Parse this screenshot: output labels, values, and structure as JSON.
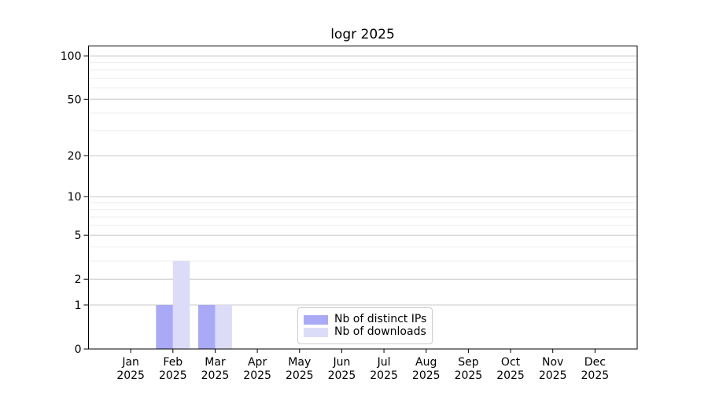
{
  "chart_data": {
    "type": "bar",
    "title": "logr 2025",
    "categories": [
      "Jan",
      "Feb",
      "Mar",
      "Apr",
      "May",
      "Jun",
      "Jul",
      "Aug",
      "Sep",
      "Oct",
      "Nov",
      "Dec"
    ],
    "category_year": "2025",
    "series": [
      {
        "name": "Nb of distinct IPs",
        "color": "#a9a9f6",
        "values": [
          0,
          1,
          1,
          0,
          0,
          0,
          0,
          0,
          0,
          0,
          0,
          0
        ]
      },
      {
        "name": "Nb of downloads",
        "color": "#dcdcf9",
        "values": [
          0,
          3,
          1,
          0,
          0,
          0,
          0,
          0,
          0,
          0,
          0,
          0
        ]
      }
    ],
    "y_scale": "log1p",
    "y_major_ticks": [
      0,
      1,
      2,
      5,
      10,
      20,
      50,
      100
    ],
    "y_minor_ticks": [
      3,
      4,
      6,
      7,
      8,
      9,
      30,
      40,
      60,
      70,
      80,
      90
    ],
    "ylim": [
      0,
      117
    ],
    "xlabel": "",
    "ylabel": "",
    "grid": "horizontal",
    "legend_position": "bottom-center",
    "colors": {
      "axis": "#000000",
      "text": "#000000",
      "grid_major": "#c8c8c8",
      "grid_minor": "#efefef",
      "legend_border": "#cccccc",
      "background": "#ffffff"
    }
  }
}
